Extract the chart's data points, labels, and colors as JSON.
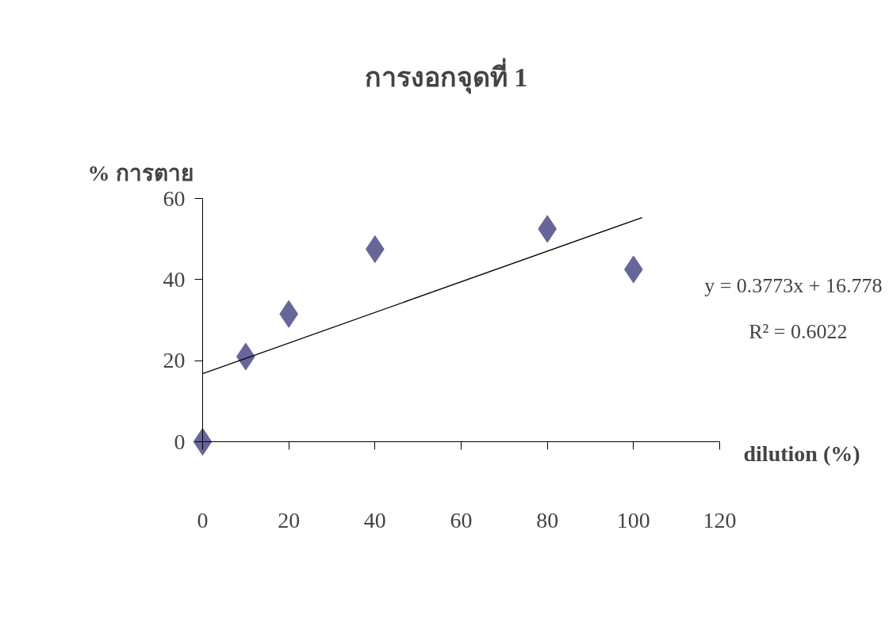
{
  "chart_data": {
    "type": "scatter",
    "title": "การงอกจุดที่ 1",
    "xlabel": "dilution (%)",
    "ylabel": "% การตาย",
    "x": [
      0,
      10,
      20,
      40,
      80,
      100
    ],
    "series": [
      {
        "color": "#66669a",
        "values": [
          0,
          21,
          31.5,
          47.5,
          52.5,
          42.5
        ],
        "marker": "diamond"
      },
      {
        "type": "line",
        "color": "#000000",
        "x": [
          0,
          102
        ],
        "values": [
          16.8,
          55.3
        ],
        "line_style": "solid"
      }
    ],
    "xlim": [
      0,
      120
    ],
    "xticks": [
      0,
      20,
      40,
      60,
      80,
      100,
      120
    ],
    "ylim": [
      0,
      60
    ],
    "yticks": [
      0,
      20,
      40,
      60
    ],
    "grid": false,
    "annotations": [
      "y = 0.3773x + 16.778",
      "R² = 0.6022"
    ]
  }
}
